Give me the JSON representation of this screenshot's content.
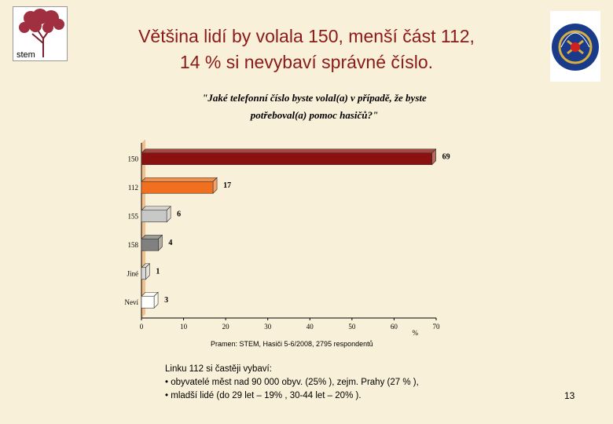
{
  "title": {
    "line1": "Většina lidí by volala 150, menší část 112,",
    "line2": "14 % si nevybaví správné číslo."
  },
  "logo_left": {
    "icon": "stem-tree-logo",
    "text": "stem"
  },
  "logo_right": {
    "icon": "fire-rescue-emblem"
  },
  "chart_data": {
    "type": "bar",
    "orientation": "horizontal",
    "title_line1": "\"Jaké telefonní číslo byste volal(a) v případě, že byste",
    "title_line2": "potřeboval(a) pomoc hasičů?\"",
    "categories": [
      "150",
      "112",
      "155",
      "158",
      "Jiné",
      "Neví"
    ],
    "values": [
      69,
      17,
      6,
      4,
      1,
      3
    ],
    "colors": [
      "#8b1010",
      "#f07020",
      "#c8c8c8",
      "#808080",
      "#d8d8d8",
      "#ffffff"
    ],
    "xlim": [
      0,
      70
    ],
    "xticks": [
      0,
      10,
      20,
      30,
      40,
      50,
      60,
      70
    ],
    "xunit": "%",
    "grid": false
  },
  "source": "Pramen: STEM, Hasiči 5-6/2008, 2795 respondentů",
  "notes": {
    "heading": "Linku 112 si častěji vybaví:",
    "items": [
      "obyvatelé měst nad 90 000 obyv. (25% ), zejm. Prahy (27 % ),",
      "mladší lidé (do 29 let – 19% , 30-44 let – 20% )."
    ]
  },
  "page_number": "13"
}
